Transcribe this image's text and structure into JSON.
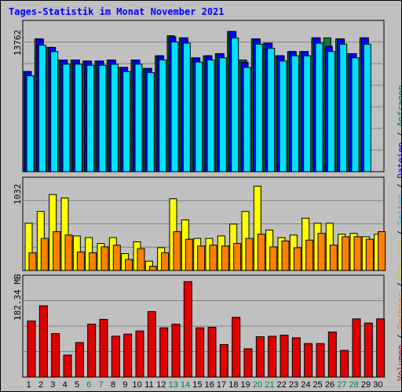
{
  "chart_data": {
    "type": "bar",
    "title": "Tages-Statistik im Monat November 2021",
    "days": [
      "1",
      "2",
      "3",
      "4",
      "5",
      "6",
      "7",
      "8",
      "9",
      "10",
      "11",
      "12",
      "13",
      "14",
      "15",
      "16",
      "17",
      "18",
      "19",
      "20",
      "21",
      "22",
      "23",
      "24",
      "25",
      "26",
      "27",
      "28",
      "29",
      "30"
    ],
    "weekend_days": [
      "6",
      "7",
      "13",
      "14",
      "20",
      "21",
      "27",
      "28"
    ],
    "grid": true,
    "legend": [
      {
        "name": "Volumen",
        "color": "#e00000"
      },
      {
        "name": "Rechner",
        "color": "#ff8000"
      },
      {
        "name": "Besuche",
        "color": "#e0c000"
      },
      {
        "name": "Seiten",
        "color": "#00c0ff"
      },
      {
        "name": "Dateien",
        "color": "#0000ff"
      },
      {
        "name": "Anfragen",
        "color": "#008040"
      }
    ],
    "legend_separator": " / ",
    "panels": [
      {
        "ylabel": "13762",
        "ymax": 13762,
        "series": [
          {
            "name": "Anfragen",
            "color": "#008040",
            "values": [
              9500,
              12600,
              11800,
              10600,
              10600,
              10500,
              10500,
              10600,
              9900,
              10600,
              9800,
              11000,
              12900,
              12700,
              10800,
              11000,
              11200,
              13300,
              10600,
              12600,
              12200,
              11000,
              11400,
              11400,
              12700,
              12700,
              12600,
              11200,
              12700,
              0
            ]
          },
          {
            "name": "Dateien",
            "color": "#0000ff",
            "values": [
              9500,
              12600,
              11800,
              10600,
              10600,
              10500,
              10500,
              10600,
              9900,
              10600,
              9800,
              11000,
              12800,
              12700,
              10800,
              11000,
              11200,
              13300,
              10400,
              12600,
              12200,
              11000,
              11400,
              11400,
              12700,
              11900,
              12600,
              11200,
              12700,
              0
            ]
          },
          {
            "name": "Seiten",
            "color": "#00e0ff",
            "values": [
              9100,
              12000,
              11400,
              10200,
              10200,
              10100,
              10100,
              10200,
              9500,
              10200,
              9400,
              10600,
              12300,
              12200,
              10400,
              10600,
              10800,
              12700,
              9900,
              12100,
              11700,
              10500,
              11000,
              11000,
              12200,
              11400,
              12100,
              10800,
              12100,
              0
            ]
          }
        ]
      },
      {
        "ylabel": "1032",
        "ymax": 1032,
        "series": [
          {
            "name": "Besuche",
            "color": "#ffff00",
            "values": [
              560,
              700,
              900,
              860,
              410,
              390,
              320,
              390,
              200,
              340,
              110,
              270,
              850,
              600,
              380,
              380,
              410,
              550,
              700,
              1000,
              480,
              390,
              420,
              620,
              560,
              560,
              430,
              440,
              400,
              430
            ]
          },
          {
            "name": "Rechner",
            "color": "#ff8000",
            "values": [
              210,
              380,
              460,
              420,
              220,
              210,
              280,
              300,
              130,
              260,
              50,
              210,
              460,
              370,
              290,
              300,
              290,
              320,
              380,
              430,
              280,
              350,
              270,
              360,
              440,
              300,
              400,
              400,
              370,
              460
            ]
          }
        ]
      },
      {
        "ylabel": "182.34 MB",
        "ymax": 182.34,
        "series": [
          {
            "name": "Volumen",
            "color": "#e00000",
            "values": [
              107,
              136,
              83,
              42,
              66,
              101,
              110,
              78,
              82,
              88,
              125,
              94,
              101,
              182,
              94,
              95,
              62,
              114,
              54,
              77,
              78,
              80,
              75,
              64,
              64,
              86,
              51,
              111,
              103,
              111
            ]
          }
        ]
      }
    ]
  }
}
